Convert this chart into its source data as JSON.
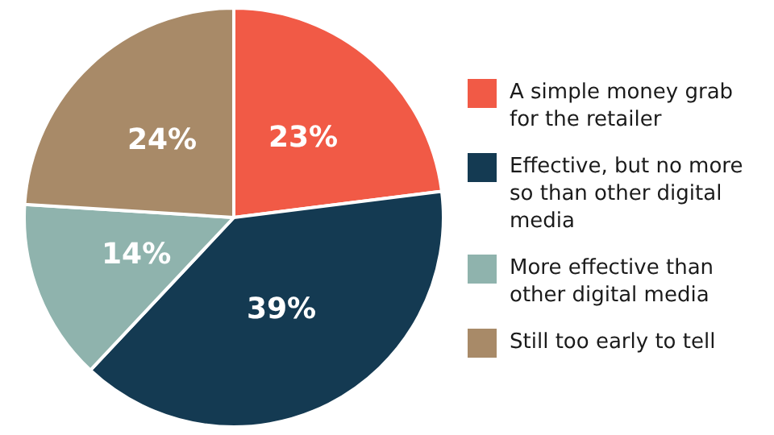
{
  "chart_data": {
    "type": "pie",
    "categories": [
      "A simple money grab for the retailer",
      "Effective, but no more so than other digital media",
      "More effective than other digital media",
      "Still too early to tell"
    ],
    "values": [
      23,
      39,
      14,
      24
    ],
    "value_labels": [
      "23%",
      "39%",
      "14%",
      "24%"
    ],
    "colors": [
      "#f15a46",
      "#143a52",
      "#8fb3ad",
      "#a88a68"
    ],
    "legend": "right"
  }
}
